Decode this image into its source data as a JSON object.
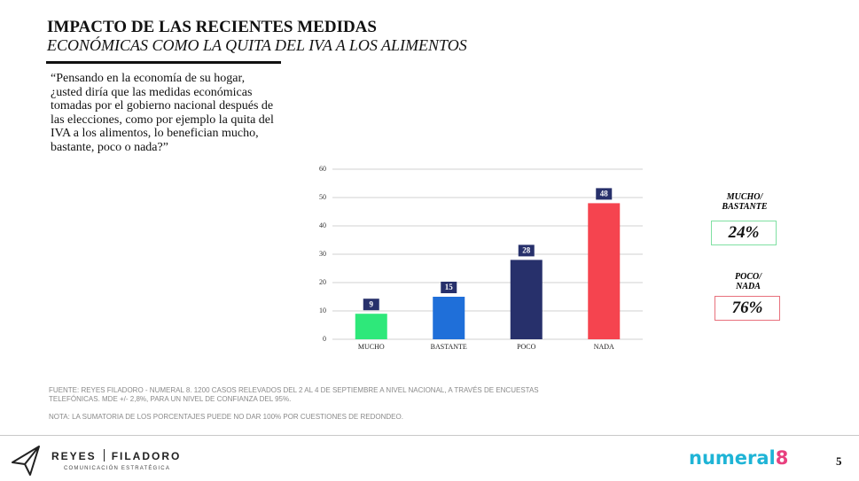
{
  "header": {
    "title": "IMPACTO DE LAS RECIENTES MEDIDAS",
    "subtitle": "ECONÓMICAS COMO LA QUITA DEL IVA A LOS ALIMENTOS"
  },
  "question": "“Pensando en la economía de su hogar, ¿usted diría que las medidas económicas tomadas por el gobierno nacional después de las elecciones, como por ejemplo la quita del IVA a los alimentos, lo benefician mucho, bastante, poco o nada?”",
  "chart_data": {
    "type": "bar",
    "categories": [
      "MUCHO",
      "BASTANTE",
      "POCO",
      "NADA"
    ],
    "values": [
      9,
      15,
      28,
      48
    ],
    "colors": [
      "#2ee87a",
      "#1f6fd9",
      "#27306b",
      "#f5444f"
    ],
    "ylim": [
      0,
      60
    ],
    "yticks": [
      0,
      10,
      20,
      30,
      40,
      50,
      60
    ],
    "grid": true
  },
  "summary": [
    {
      "lines": [
        "MUCHO/",
        "BASTANTE"
      ],
      "value": "24%",
      "color": "#7fe0a2"
    },
    {
      "lines": [
        "POCO/",
        "NADA"
      ],
      "value": "76%",
      "color": "#e8707c"
    }
  ],
  "footnotes": {
    "source": "FUENTE: REYES FILADORO - NUMERAL 8. 1200 CASOS RELEVADOS DEL 2 AL 4 DE SEPTIEMBRE A NIVEL NACIONAL, A TRAVÉS DE ENCUESTAS TELEFÓNICAS. MDE +/- 2,8%, PARA UN NIVEL DE CONFIANZA DEL 95%.",
    "note": "NOTA: LA SUMATORIA DE LOS PORCENTAJES PUEDE NO DAR 100% POR CUESTIONES DE REDONDEO."
  },
  "footer": {
    "brand_left": "REYES",
    "brand_right": "FILADORO",
    "tagline": "COMUNICACIÓN ESTRATÉGICA",
    "partner": "numeral",
    "partner_accent": "8",
    "page": "5"
  }
}
